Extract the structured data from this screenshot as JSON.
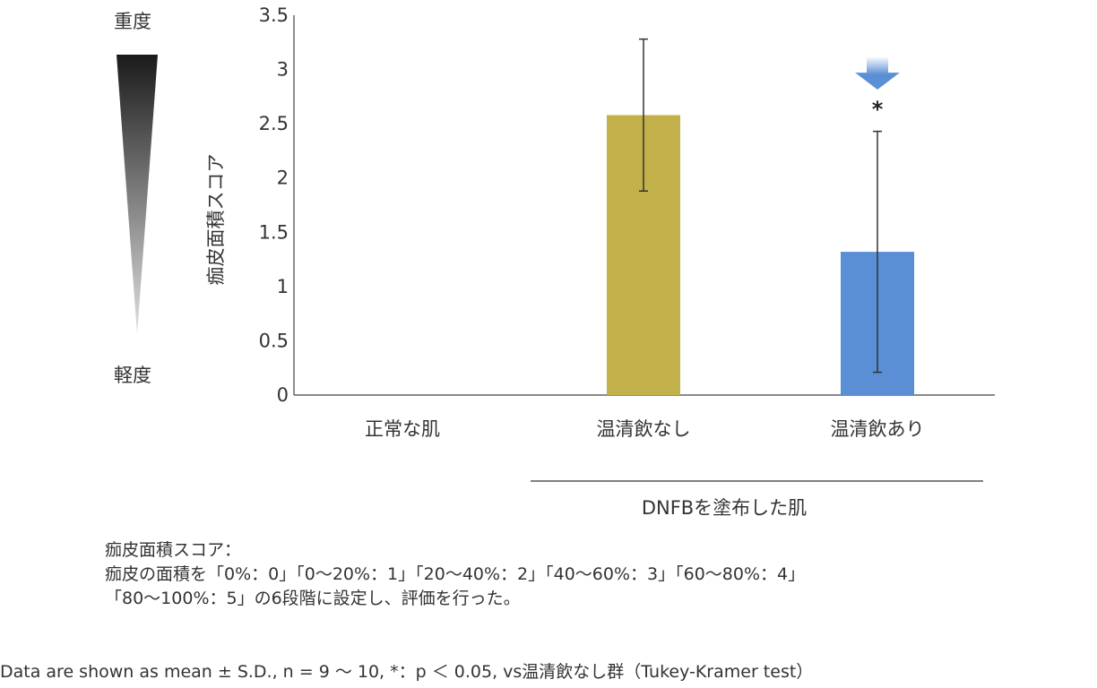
{
  "severity": {
    "top_label": "重度",
    "bottom_label": "軽度"
  },
  "group_label": "DNFBを塗布した肌",
  "notes": {
    "line1": "痂皮面積スコア：",
    "line2": "痂皮の面積を「0%：0」「0～20%：1」「20～40%：2」「40～60%：3」「60～80%：4」",
    "line3": "「80～100%：5」の6段階に設定し、評価を行った。"
  },
  "footer": "Data are shown as mean ± S.D., n = 9 ～ 10, *：p ＜ 0.05, vs温清飲なし群（Tukey-Kramer test）",
  "chart_data": {
    "type": "bar",
    "title": "",
    "xlabel": "",
    "ylabel": "痂皮面積スコア",
    "categories": [
      "正常な肌",
      "温清飲なし",
      "温清飲あり"
    ],
    "values": [
      0,
      2.58,
      1.32
    ],
    "error": [
      0,
      0.7,
      1.11
    ],
    "colors": [
      "#c2b04a",
      "#c2b04a",
      "#5b8fd5"
    ],
    "ylim": [
      0,
      3.5
    ],
    "yticks": [
      "0",
      "0.5",
      "1",
      "1.5",
      "2",
      "2.5",
      "3",
      "3.5"
    ],
    "significance": [
      {
        "category": "温清飲あり",
        "mark": "*"
      }
    ],
    "arrow_color": "#5b8fd5",
    "grid": false
  }
}
